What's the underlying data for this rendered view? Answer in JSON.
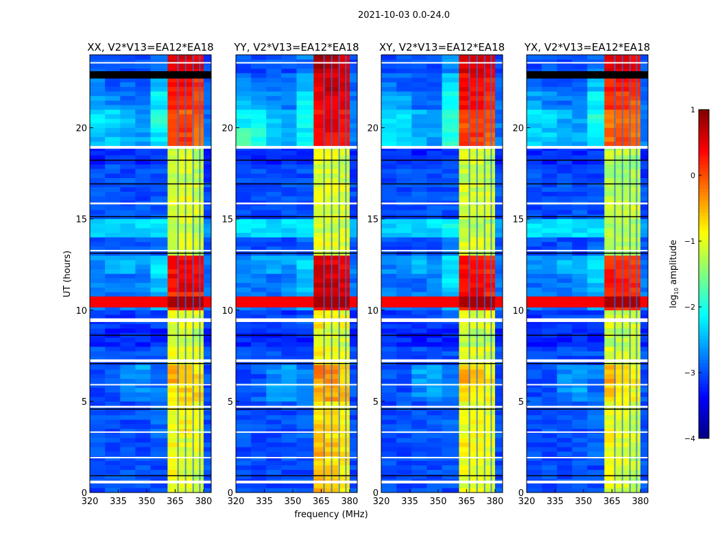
{
  "chart_data": {
    "type": "heatmap",
    "title": "2021-10-03 0.0-24.0",
    "xlabel": "frequency (MHz)",
    "ylabel": "UT (hours)",
    "xlim": [
      320,
      384
    ],
    "ylim": [
      0,
      24
    ],
    "xticks": [
      320,
      335,
      350,
      365,
      380
    ],
    "yticks": [
      0,
      5,
      10,
      15,
      20
    ],
    "freq_edges_mhz": [
      320,
      328,
      336,
      344,
      352,
      361,
      367,
      374,
      380,
      384
    ],
    "hour_edges": "0..24 step 1",
    "vertical_rfi_mhz": [
      366.5,
      370.5,
      374.5,
      378.0
    ],
    "broadband_event": {
      "hours": [
        10.15,
        10.75
      ],
      "value_low": 0.4,
      "value_high": 0.8
    },
    "flags_white_hours": [
      [
        0.5,
        0.65
      ],
      [
        1.9,
        1.95
      ],
      [
        3.3,
        3.35
      ],
      [
        4.65,
        4.75
      ],
      [
        5.9,
        5.95
      ],
      [
        7.15,
        7.3
      ],
      [
        9.35,
        9.55
      ],
      [
        13.25,
        13.3
      ],
      [
        15.8,
        15.9
      ],
      [
        18.85,
        19.0
      ],
      [
        23.55,
        23.6
      ]
    ],
    "flags_black_hours": [
      [
        0.9,
        0.95
      ],
      [
        4.55,
        4.6
      ],
      [
        7.05,
        7.1
      ],
      [
        8.6,
        8.65
      ],
      [
        13.1,
        13.15
      ],
      [
        15.1,
        15.15
      ],
      [
        16.9,
        16.95
      ],
      [
        18.2,
        18.25
      ]
    ],
    "colorbar": {
      "label": "log10 amplitude",
      "label_main": "log",
      "label_sub": "10",
      "label_rest": " amplitude",
      "range": [
        -4,
        1
      ],
      "ticks": [
        "1",
        "0",
        "−1",
        "−2",
        "−3",
        "−4"
      ],
      "tick_values": [
        1,
        0,
        -1,
        -2,
        -3,
        -4
      ]
    },
    "panels": [
      {
        "title": "XX, V2*V13=EA12*EA18",
        "extra_black_hours": [
          [
            22.7,
            23.1
          ]
        ],
        "values": [
          [
            -3,
            -3,
            -3,
            -3,
            -3,
            -1,
            -1,
            -1.2,
            -3
          ],
          [
            -3,
            -3,
            -3,
            -3,
            -3,
            -0.9,
            -1,
            -1.1,
            -3
          ],
          [
            -3,
            -3,
            -3,
            -3,
            -2.9,
            -0.9,
            -1,
            -1,
            -3
          ],
          [
            -3,
            -3,
            -3,
            -3,
            -2.9,
            -0.9,
            -0.8,
            -1,
            -3
          ],
          [
            -3,
            -3,
            -3,
            -3,
            -2.9,
            -1,
            -0.9,
            -1,
            -3
          ],
          [
            -3,
            -3,
            -2.8,
            -2.7,
            -2.8,
            -0.8,
            -0.7,
            -0.6,
            -3
          ],
          [
            -3,
            -3,
            -2.7,
            -2.6,
            -2.8,
            -0.4,
            -0.5,
            -0.7,
            -3
          ],
          [
            -3,
            -3,
            -3,
            -3,
            -3,
            -1,
            -1,
            -1,
            -3
          ],
          [
            -3.2,
            -3.2,
            -3.2,
            -3.2,
            -3.2,
            -1.2,
            -1.2,
            -1.2,
            -3.2
          ],
          [
            -3.1,
            -3.1,
            -3.1,
            -3.1,
            -3,
            -1,
            -1,
            -1,
            -3.1
          ],
          [
            -2.8,
            -2.8,
            -2.8,
            -2.8,
            -2.5,
            0.2,
            0.3,
            0.2,
            -2.8
          ],
          [
            -2.8,
            -2.8,
            -2.8,
            -2.7,
            -2.4,
            0.4,
            0.5,
            0.4,
            -2.8
          ],
          [
            -2.7,
            -2.6,
            -2.5,
            -2.6,
            -2.3,
            0.3,
            0.4,
            0.3,
            -2.8
          ],
          [
            -3,
            -3,
            -3,
            -3,
            -2.9,
            -1.1,
            -1,
            -1.1,
            -3
          ],
          [
            -2.3,
            -2.3,
            -2.3,
            -2.3,
            -2.2,
            -1.2,
            -1.1,
            -1.2,
            -2.6
          ],
          [
            -3,
            -3,
            -3,
            -3,
            -3,
            -1,
            -1.1,
            -1,
            -3
          ],
          [
            -3,
            -3,
            -3,
            -3,
            -3,
            -1.1,
            -1,
            -1.1,
            -3
          ],
          [
            -3,
            -3,
            -3,
            -3,
            -3,
            -1.2,
            -1.1,
            -1.2,
            -3.1
          ],
          [
            -3.2,
            -3.2,
            -3.2,
            -3.2,
            -3.1,
            -1.1,
            -1.1,
            -1.2,
            -3.2
          ],
          [
            -2.4,
            -2.4,
            -2.5,
            -2.6,
            -2.2,
            0,
            0.1,
            -0.1,
            -2.8
          ],
          [
            -2.3,
            -2.3,
            -2.5,
            -2.6,
            -2,
            -0.1,
            0,
            -0.1,
            -2.8
          ],
          [
            -2.6,
            -2.7,
            -2.8,
            -2.8,
            -2.2,
            0.2,
            0.3,
            0.1,
            -2.8
          ],
          [
            -2.8,
            -2.9,
            -2.9,
            -2.9,
            -2.4,
            0.3,
            0.4,
            0.2,
            -2.9
          ],
          [
            -3,
            -3,
            -3,
            -3,
            -2.8,
            0.6,
            0.6,
            0.5,
            -3
          ]
        ]
      },
      {
        "title": "YY, V2*V13=EA12*EA18",
        "extra_black_hours": [],
        "values": [
          [
            -3,
            -3,
            -3,
            -3,
            -3,
            -0.5,
            -0.7,
            -0.8,
            -3
          ],
          [
            -3,
            -3,
            -3,
            -3,
            -3,
            -0.6,
            -0.7,
            -0.8,
            -3
          ],
          [
            -3,
            -3,
            -3,
            -3,
            -2.9,
            -0.5,
            -0.6,
            -0.8,
            -3
          ],
          [
            -3,
            -3,
            -3,
            -3,
            -2.9,
            -0.6,
            -0.7,
            -0.8,
            -3
          ],
          [
            -3,
            -3,
            -3,
            -3,
            -2.9,
            -0.7,
            -0.8,
            -0.9,
            -3
          ],
          [
            -3,
            -2.9,
            -2.6,
            -2.6,
            -2.8,
            -0.5,
            -0.4,
            -0.6,
            -3
          ],
          [
            -3,
            -3,
            -2.7,
            -2.6,
            -2.8,
            -0.3,
            -0.3,
            -0.6,
            -3
          ],
          [
            -3,
            -3,
            -3,
            -3,
            -3,
            -0.8,
            -0.9,
            -0.9,
            -3
          ],
          [
            -3.2,
            -3.2,
            -3.2,
            -3.2,
            -3.2,
            -1,
            -1.1,
            -1.1,
            -3.2
          ],
          [
            -3.1,
            -3.1,
            -3.1,
            -3.1,
            -3,
            -0.8,
            -0.9,
            -0.9,
            -3.1
          ],
          [
            -2.8,
            -2.8,
            -2.8,
            -2.8,
            -2.5,
            0.5,
            0.5,
            0.4,
            -2.8
          ],
          [
            -2.8,
            -2.8,
            -2.8,
            -2.7,
            -2.4,
            0.6,
            0.6,
            0.5,
            -2.8
          ],
          [
            -2.7,
            -2.6,
            -2.5,
            -2.6,
            -2.3,
            0.5,
            0.5,
            0.4,
            -2.8
          ],
          [
            -3,
            -3,
            -3,
            -3,
            -2.9,
            -1,
            -1,
            -1,
            -3
          ],
          [
            -2.3,
            -2.3,
            -2.3,
            -2.3,
            -2.2,
            -1.1,
            -1.1,
            -1.1,
            -2.6
          ],
          [
            -3,
            -3,
            -3,
            -3,
            -3,
            -1,
            -1,
            -1,
            -3
          ],
          [
            -3,
            -3,
            -3,
            -3,
            -3,
            -1,
            -1,
            -1,
            -3
          ],
          [
            -3,
            -3,
            -3,
            -3,
            -3,
            -1.1,
            -1.1,
            -1.1,
            -3.1
          ],
          [
            -3.2,
            -3.2,
            -3.2,
            -3.2,
            -3.1,
            -1,
            -1,
            -1.1,
            -3.2
          ],
          [
            -1.8,
            -2,
            -2.3,
            -2.5,
            -2.2,
            0.4,
            0.4,
            0.3,
            -2.8
          ],
          [
            -2.2,
            -2.2,
            -2.4,
            -2.5,
            -2,
            0.3,
            0.4,
            0.3,
            -2.8
          ],
          [
            -2.5,
            -2.6,
            -2.7,
            -2.8,
            -2.2,
            0.4,
            0.5,
            0.4,
            -2.8
          ],
          [
            -2.8,
            -2.9,
            -2.9,
            -2.9,
            -2.4,
            0.5,
            0.6,
            0.5,
            -2.9
          ],
          [
            -3,
            -3,
            -3,
            -3,
            -2.8,
            0.7,
            0.7,
            0.6,
            -3
          ]
        ]
      },
      {
        "title": "XY, V2*V13=EA12*EA18",
        "extra_black_hours": [],
        "values": [
          [
            -3,
            -3,
            -3,
            -3,
            -3,
            -1,
            -1,
            -1.1,
            -3
          ],
          [
            -3,
            -3,
            -3,
            -3,
            -3,
            -0.9,
            -1,
            -1.1,
            -3
          ],
          [
            -3,
            -3,
            -3,
            -3,
            -2.9,
            -0.8,
            -0.9,
            -1,
            -3
          ],
          [
            -3,
            -3,
            -3,
            -3,
            -2.9,
            -0.9,
            -0.9,
            -1,
            -3
          ],
          [
            -3,
            -3,
            -3,
            -3,
            -2.9,
            -1,
            -1,
            -1,
            -3
          ],
          [
            -3,
            -3,
            -2.7,
            -2.6,
            -2.8,
            -0.7,
            -0.8,
            -0.9,
            -3
          ],
          [
            -3,
            -3,
            -2.6,
            -2.6,
            -2.8,
            -0.5,
            -0.6,
            -0.8,
            -3
          ],
          [
            -3,
            -3,
            -3,
            -3,
            -3,
            -1,
            -1,
            -1,
            -3
          ],
          [
            -3.2,
            -3.2,
            -3.2,
            -3.2,
            -3.2,
            -1.2,
            -1.2,
            -1.2,
            -3.2
          ],
          [
            -3.1,
            -3.1,
            -3.1,
            -3.1,
            -3,
            -1,
            -1,
            -1,
            -3.1
          ],
          [
            -2.8,
            -2.8,
            -2.8,
            -2.8,
            -2.4,
            0.3,
            0.3,
            0.2,
            -2.8
          ],
          [
            -2.8,
            -2.8,
            -2.8,
            -2.7,
            -2.3,
            0.4,
            0.4,
            0.3,
            -2.8
          ],
          [
            -2.7,
            -2.6,
            -2.5,
            -2.6,
            -2.2,
            0.3,
            0.3,
            0.2,
            -2.8
          ],
          [
            -3,
            -3,
            -3,
            -3,
            -2.8,
            -1.1,
            -1.1,
            -1.1,
            -3
          ],
          [
            -2.3,
            -2.3,
            -2.3,
            -2.3,
            -2.1,
            -1.2,
            -1.2,
            -1.2,
            -2.6
          ],
          [
            -3,
            -3,
            -3,
            -3,
            -3,
            -1.1,
            -1.1,
            -1.1,
            -3
          ],
          [
            -3,
            -3,
            -3,
            -3,
            -3,
            -1.1,
            -1.1,
            -1.1,
            -3
          ],
          [
            -3,
            -3,
            -3,
            -3,
            -3,
            -1.2,
            -1.2,
            -1.2,
            -3.1
          ],
          [
            -3.2,
            -3.2,
            -3.2,
            -3.2,
            -3.1,
            -1.1,
            -1.1,
            -1.2,
            -3.2
          ],
          [
            -2.3,
            -2.3,
            -2.5,
            -2.6,
            -2,
            0.1,
            0.1,
            0,
            -2.8
          ],
          [
            -2.2,
            -2.3,
            -2.5,
            -2.6,
            -1.9,
            0,
            0.1,
            0,
            -2.8
          ],
          [
            -2.5,
            -2.6,
            -2.8,
            -2.8,
            -2.1,
            0.3,
            0.3,
            0.2,
            -2.8
          ],
          [
            -2.8,
            -2.9,
            -2.9,
            -2.9,
            -2.3,
            0.4,
            0.4,
            0.3,
            -2.9
          ],
          [
            -3,
            -3,
            -3,
            -3,
            -2.7,
            0.6,
            0.6,
            0.5,
            -3
          ]
        ]
      },
      {
        "title": "YX, V2*V13=EA12*EA18",
        "extra_black_hours": [
          [
            22.7,
            23.1
          ]
        ],
        "values": [
          [
            -3,
            -3,
            -3,
            -3,
            -3,
            -1,
            -1.1,
            -1.2,
            -3
          ],
          [
            -3,
            -3,
            -3,
            -3,
            -3,
            -1,
            -1.1,
            -1.2,
            -3
          ],
          [
            -3,
            -3,
            -3,
            -3,
            -2.9,
            -0.9,
            -1,
            -1.1,
            -3
          ],
          [
            -3,
            -3,
            -3,
            -3,
            -2.9,
            -0.9,
            -1,
            -1.1,
            -3
          ],
          [
            -3,
            -3,
            -3,
            -3,
            -2.9,
            -1,
            -1,
            -1.1,
            -3
          ],
          [
            -3,
            -3,
            -2.7,
            -2.6,
            -2.8,
            -0.6,
            -0.8,
            -0.9,
            -3
          ],
          [
            -3,
            -3,
            -2.7,
            -2.6,
            -2.8,
            -0.5,
            -0.6,
            -0.8,
            -3
          ],
          [
            -3,
            -3,
            -3,
            -3,
            -3,
            -1.1,
            -1.1,
            -1.1,
            -3
          ],
          [
            -3.2,
            -3.2,
            -3.2,
            -3.2,
            -3.2,
            -1.2,
            -1.2,
            -1.2,
            -3.2
          ],
          [
            -3.1,
            -3.1,
            -3.1,
            -3.1,
            -3,
            -1.1,
            -1.1,
            -1.1,
            -3.1
          ],
          [
            -2.8,
            -2.8,
            -2.8,
            -2.8,
            -2.5,
            0.2,
            0.2,
            0.1,
            -2.8
          ],
          [
            -2.8,
            -2.8,
            -2.8,
            -2.7,
            -2.4,
            0.3,
            0.3,
            0.2,
            -2.8
          ],
          [
            -2.7,
            -2.6,
            -2.5,
            -2.6,
            -2.3,
            0.2,
            0.2,
            0.1,
            -2.8
          ],
          [
            -3,
            -3,
            -3,
            -3,
            -2.9,
            -1.2,
            -1.2,
            -1.2,
            -3
          ],
          [
            -2.3,
            -2.3,
            -2.3,
            -2.3,
            -2.2,
            -1.3,
            -1.3,
            -1.3,
            -2.6
          ],
          [
            -3,
            -3,
            -3,
            -3,
            -3,
            -1.1,
            -1.1,
            -1.1,
            -3
          ],
          [
            -3,
            -3,
            -3,
            -3,
            -3,
            -1.2,
            -1.2,
            -1.2,
            -3
          ],
          [
            -3,
            -3,
            -3,
            -3,
            -3,
            -1.3,
            -1.3,
            -1.3,
            -3.1
          ],
          [
            -3.2,
            -3.2,
            -3.2,
            -3.2,
            -3.1,
            -1.2,
            -1.2,
            -1.3,
            -3.2
          ],
          [
            -2.4,
            -2.4,
            -2.5,
            -2.6,
            -2.2,
            -0.1,
            0,
            -0.2,
            -2.8
          ],
          [
            -2.3,
            -2.3,
            -2.5,
            -2.6,
            -2,
            -0.2,
            -0.1,
            -0.2,
            -2.8
          ],
          [
            -2.6,
            -2.7,
            -2.8,
            -2.8,
            -2.2,
            0.1,
            0.1,
            0,
            -2.8
          ],
          [
            -2.8,
            -2.9,
            -2.9,
            -2.9,
            -2.4,
            0.2,
            0.2,
            0.1,
            -2.9
          ],
          [
            -3,
            -3,
            -3,
            -3,
            -2.8,
            0.5,
            0.5,
            0.4,
            -3
          ]
        ]
      }
    ]
  }
}
